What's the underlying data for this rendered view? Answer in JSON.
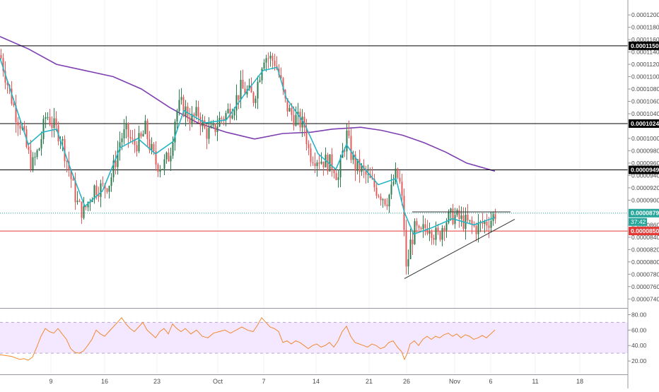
{
  "chart_data": [
    {
      "type": "candlestick",
      "panel": "price",
      "pair_quote": "BTC",
      "x_tick_labels": [
        "9",
        "16",
        "23",
        "Oct",
        "7",
        "14",
        "21",
        "26",
        "Nov",
        "6",
        "11",
        "18"
      ],
      "y_tick_labels": [
        "0.0001200",
        "0.0001180",
        "0.0001160",
        "0.0001140",
        "0.0001120",
        "0.0001100",
        "0.0001080",
        "0.0001060",
        "0.0001040",
        "0.0001000",
        "0.0000980",
        "0.0000960",
        "0.0000940",
        "0.0000920",
        "0.0000900",
        "0.0000860",
        "0.0000840",
        "0.0000820",
        "0.0000800",
        "0.0000780",
        "0.0000760",
        "0.0000740"
      ],
      "ylim": [
        7.3e-05,
        0.0001215
      ],
      "horizontal_levels": [
        {
          "value": 0.000115,
          "label": "0.0001150",
          "color": "#000000"
        },
        {
          "value": 0.0001024,
          "label": "0.0001024",
          "color": "#000000"
        },
        {
          "value": 9.49e-05,
          "label": "0.0000949",
          "color": "#000000"
        },
        {
          "value": 8.5e-05,
          "label": "0.0000850",
          "color": "#e53935"
        }
      ],
      "last_price": {
        "value": 8.79e-05,
        "label": "0.0000879",
        "countdown": "37:42",
        "color": "#26a69a"
      },
      "moving_average_color": "#7e3fb0",
      "ema_color": "#26b5c4",
      "candle_up_color": "#2e7d4f",
      "candle_down_color": "#e55b5b",
      "close_path": [
        [
          0,
          0.0001135
        ],
        [
          12,
          0.000108
        ],
        [
          22,
          0.000104
        ],
        [
          30,
          0.000102
        ],
        [
          38,
          9.8e-05
        ],
        [
          45,
          9.55e-05
        ],
        [
          55,
          9.85e-05
        ],
        [
          65,
          0.000104
        ],
        [
          75,
          0.000102
        ],
        [
          85,
          0.0001005
        ],
        [
          95,
          9.6e-05
        ],
        [
          103,
          9.2e-05
        ],
        [
          110,
          8.9e-05
        ],
        [
          118,
          8.8e-05
        ],
        [
          125,
          9e-05
        ],
        [
          133,
          9.2e-05
        ],
        [
          145,
          9.2e-05
        ],
        [
          155,
          9.3e-05
        ],
        [
          163,
          9.65e-05
        ],
        [
          170,
          0.0001
        ],
        [
          178,
          0.000101
        ],
        [
          188,
          9.9e-05
        ],
        [
          198,
          9.95e-05
        ],
        [
          205,
          0.0001015
        ],
        [
          212,
          9.85e-05
        ],
        [
          220,
          9.6e-05
        ],
        [
          230,
          9.55e-05
        ],
        [
          240,
          9.75e-05
        ],
        [
          248,
          0.000104
        ],
        [
          255,
          0.0001055
        ],
        [
          262,
          0.0001045
        ],
        [
          270,
          0.000103
        ],
        [
          280,
          0.000104
        ],
        [
          290,
          0.000101
        ],
        [
          300,
          0.000101
        ],
        [
          310,
          0.000103
        ],
        [
          320,
          0.000104
        ],
        [
          330,
          0.0001055
        ],
        [
          340,
          0.000108
        ],
        [
          350,
          0.0001075
        ],
        [
          358,
          0.0001065
        ],
        [
          365,
          0.0001095
        ],
        [
          372,
          0.0001135
        ],
        [
          380,
          0.000113
        ],
        [
          388,
          0.0001125
        ],
        [
          396,
          0.0001095
        ],
        [
          402,
          0.000106
        ],
        [
          410,
          0.000104
        ],
        [
          420,
          0.000103
        ],
        [
          430,
          0.000102
        ],
        [
          437,
          9.75e-05
        ],
        [
          445,
          9.7e-05
        ],
        [
          455,
          9.65e-05
        ],
        [
          465,
          9.6e-05
        ],
        [
          472,
          9.55e-05
        ],
        [
          478,
          9.35e-05
        ],
        [
          484,
          9.75e-05
        ],
        [
          490,
          0.0001005
        ],
        [
          496,
          9.75e-05
        ],
        [
          502,
          9.55e-05
        ],
        [
          510,
          9.5e-05
        ],
        [
          520,
          9.35e-05
        ],
        [
          530,
          9.2e-05
        ],
        [
          538,
          9.1e-05
        ],
        [
          546,
          9e-05
        ],
        [
          553,
          9.15e-05
        ],
        [
          558,
          9.4e-05
        ],
        [
          564,
          9.35e-05
        ],
        [
          570,
          8.8e-05
        ],
        [
          574,
          7.85e-05
        ],
        [
          580,
          8.3e-05
        ],
        [
          587,
          8.55e-05
        ],
        [
          593,
          8.4e-05
        ],
        [
          600,
          8.55e-05
        ],
        [
          607,
          8.6e-05
        ],
        [
          614,
          8.45e-05
        ],
        [
          620,
          8.4e-05
        ],
        [
          627,
          8.65e-05
        ],
        [
          634,
          8.7e-05
        ],
        [
          641,
          8.75e-05
        ],
        [
          648,
          8.7e-05
        ],
        [
          656,
          8.65e-05
        ],
        [
          664,
          8.6e-05
        ],
        [
          672,
          8.55e-05
        ],
        [
          680,
          8.6e-05
        ],
        [
          688,
          8.65e-05
        ],
        [
          695,
          8.7e-05
        ],
        [
          700,
          8.79e-05
        ]
      ],
      "ema_path": [
        [
          0,
          0.000113
        ],
        [
          20,
          0.000106
        ],
        [
          40,
          9.9e-05
        ],
        [
          60,
          0.000101
        ],
        [
          80,
          0.0001015
        ],
        [
          100,
          9.5e-05
        ],
        [
          120,
          8.9e-05
        ],
        [
          145,
          9.15e-05
        ],
        [
          170,
          9.85e-05
        ],
        [
          195,
          0.0001
        ],
        [
          220,
          9.75e-05
        ],
        [
          245,
          9.95e-05
        ],
        [
          260,
          0.0001045
        ],
        [
          290,
          0.0001025
        ],
        [
          320,
          0.000103
        ],
        [
          345,
          0.000107
        ],
        [
          372,
          0.000111
        ],
        [
          392,
          0.0001115
        ],
        [
          405,
          0.0001065
        ],
        [
          430,
          0.0001025
        ],
        [
          450,
          9.75e-05
        ],
        [
          475,
          9.5e-05
        ],
        [
          490,
          9.9e-05
        ],
        [
          505,
          9.65e-05
        ],
        [
          535,
          9.25e-05
        ],
        [
          560,
          9.35e-05
        ],
        [
          572,
          8.8e-05
        ],
        [
          585,
          8.45e-05
        ],
        [
          610,
          8.55e-05
        ],
        [
          640,
          8.7e-05
        ],
        [
          670,
          8.6e-05
        ],
        [
          700,
          8.72e-05
        ]
      ],
      "ma_path": [
        [
          0,
          0.0001165
        ],
        [
          40,
          0.0001145
        ],
        [
          80,
          0.000112
        ],
        [
          120,
          0.000111
        ],
        [
          160,
          0.00011
        ],
        [
          200,
          0.000108
        ],
        [
          240,
          0.000105
        ],
        [
          280,
          0.0001025
        ],
        [
          320,
          0.000101
        ],
        [
          360,
          9.99e-05
        ],
        [
          400,
          0.0001008
        ],
        [
          440,
          0.000101
        ],
        [
          470,
          0.0001015
        ],
        [
          510,
          0.0001018
        ],
        [
          540,
          0.0001013
        ],
        [
          570,
          0.0001005
        ],
        [
          600,
          9.93e-05
        ],
        [
          630,
          9.78e-05
        ],
        [
          660,
          9.6e-05
        ],
        [
          700,
          9.47e-05
        ]
      ],
      "triangle": {
        "resistance": [
          [
            583,
            8.81e-05
          ],
          [
            722,
            8.81e-05
          ]
        ],
        "support": [
          [
            572,
            7.73e-05
          ],
          [
            728,
            8.69e-05
          ]
        ]
      }
    },
    {
      "type": "line",
      "panel": "rsi",
      "y_tick_labels": [
        "80.00",
        "60.00",
        "40.00",
        "20.00"
      ],
      "ylim": [
        10,
        85
      ],
      "band": [
        30,
        70
      ],
      "series": [
        {
          "color": "#f28a30",
          "points": [
            [
              0,
              28
            ],
            [
              8,
              27
            ],
            [
              16,
              26
            ],
            [
              22,
              24
            ],
            [
              28,
              22
            ],
            [
              34,
              23
            ],
            [
              40,
              21
            ],
            [
              46,
              25
            ],
            [
              52,
              38
            ],
            [
              58,
              52
            ],
            [
              64,
              62
            ],
            [
              70,
              58
            ],
            [
              76,
              56
            ],
            [
              82,
              62
            ],
            [
              88,
              55
            ],
            [
              94,
              48
            ],
            [
              100,
              36
            ],
            [
              106,
              31
            ],
            [
              112,
              30
            ],
            [
              118,
              33
            ],
            [
              124,
              40
            ],
            [
              130,
              48
            ],
            [
              136,
              60
            ],
            [
              142,
              55
            ],
            [
              148,
              52
            ],
            [
              154,
              58
            ],
            [
              160,
              64
            ],
            [
              166,
              70
            ],
            [
              172,
              76
            ],
            [
              178,
              68
            ],
            [
              184,
              62
            ],
            [
              190,
              58
            ],
            [
              196,
              64
            ],
            [
              202,
              70
            ],
            [
              208,
              60
            ],
            [
              214,
              55
            ],
            [
              220,
              50
            ],
            [
              226,
              58
            ],
            [
              232,
              62
            ],
            [
              238,
              55
            ],
            [
              244,
              68
            ],
            [
              250,
              62
            ],
            [
              256,
              58
            ],
            [
              262,
              62
            ],
            [
              270,
              55
            ],
            [
              278,
              60
            ],
            [
              286,
              52
            ],
            [
              294,
              50
            ],
            [
              302,
              56
            ],
            [
              310,
              58
            ],
            [
              318,
              60
            ],
            [
              326,
              56
            ],
            [
              334,
              60
            ],
            [
              342,
              64
            ],
            [
              350,
              60
            ],
            [
              358,
              58
            ],
            [
              364,
              66
            ],
            [
              370,
              76
            ],
            [
              376,
              70
            ],
            [
              382,
              64
            ],
            [
              388,
              62
            ],
            [
              394,
              58
            ],
            [
              400,
              44
            ],
            [
              406,
              46
            ],
            [
              412,
              42
            ],
            [
              418,
              46
            ],
            [
              424,
              44
            ],
            [
              430,
              40
            ],
            [
              436,
              36
            ],
            [
              442,
              40
            ],
            [
              448,
              42
            ],
            [
              454,
              38
            ],
            [
              460,
              40
            ],
            [
              466,
              44
            ],
            [
              472,
              38
            ],
            [
              478,
              46
            ],
            [
              484,
              58
            ],
            [
              490,
              65
            ],
            [
              496,
              52
            ],
            [
              502,
              44
            ],
            [
              508,
              42
            ],
            [
              514,
              40
            ],
            [
              520,
              38
            ],
            [
              526,
              42
            ],
            [
              532,
              40
            ],
            [
              538,
              36
            ],
            [
              544,
              38
            ],
            [
              550,
              44
            ],
            [
              556,
              46
            ],
            [
              562,
              38
            ],
            [
              568,
              32
            ],
            [
              572,
              22
            ],
            [
              576,
              30
            ],
            [
              580,
              42
            ],
            [
              586,
              46
            ],
            [
              592,
              40
            ],
            [
              598,
              48
            ],
            [
              604,
              52
            ],
            [
              610,
              48
            ],
            [
              616,
              52
            ],
            [
              622,
              50
            ],
            [
              628,
              54
            ],
            [
              634,
              56
            ],
            [
              640,
              52
            ],
            [
              646,
              55
            ],
            [
              652,
              50
            ],
            [
              658,
              54
            ],
            [
              664,
              52
            ],
            [
              670,
              48
            ],
            [
              676,
              50
            ],
            [
              682,
              53
            ],
            [
              688,
              50
            ],
            [
              694,
              55
            ],
            [
              700,
              60
            ]
          ]
        }
      ]
    }
  ]
}
